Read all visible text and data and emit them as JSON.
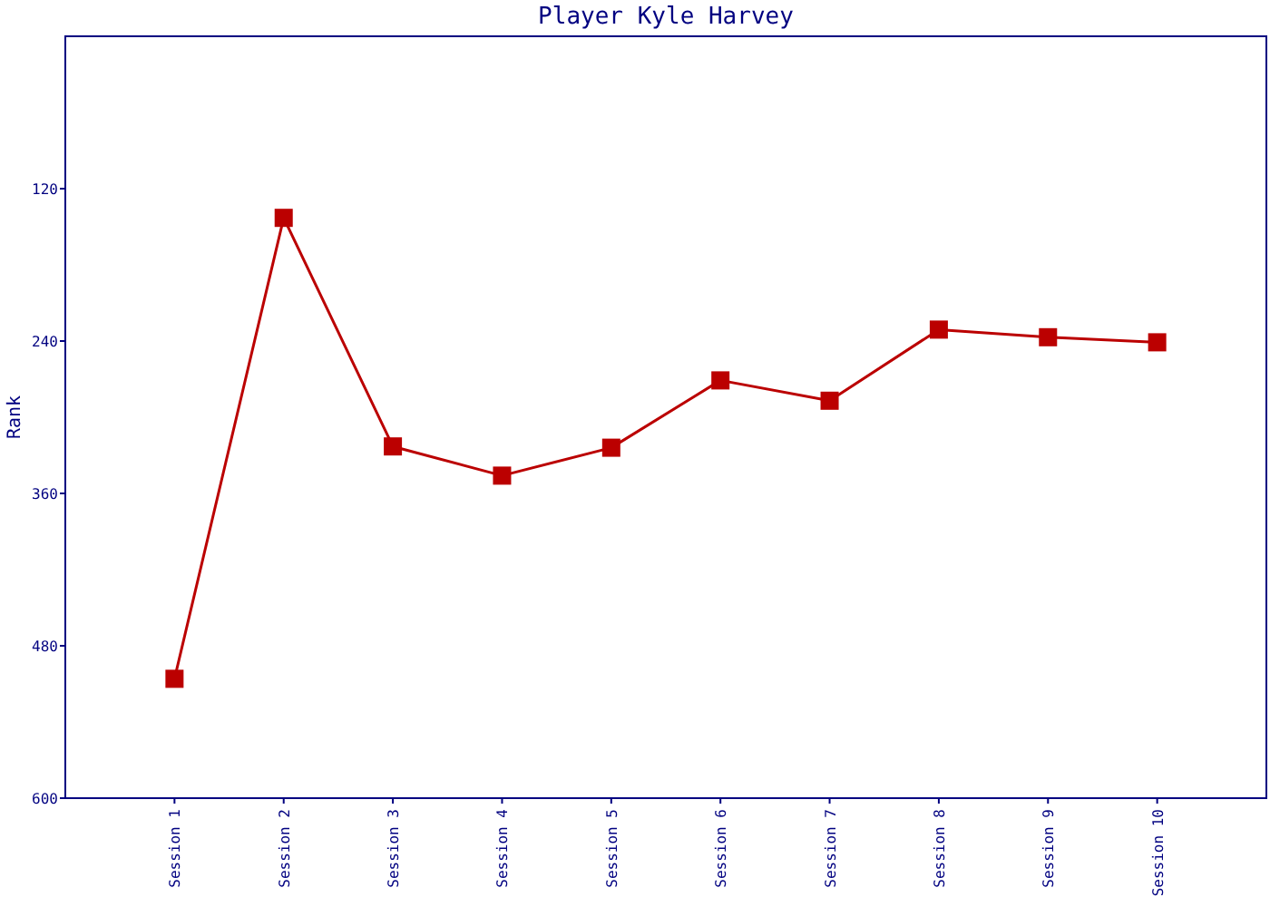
{
  "chart_data": {
    "type": "line",
    "title": "Player Kyle Harvey",
    "ylabel": "Rank",
    "categories": [
      "Session 1",
      "Session 2",
      "Session 3",
      "Session 4",
      "Session 5",
      "Session 6",
      "Session 7",
      "Session 8",
      "Session 9",
      "Session 10"
    ],
    "series": [
      {
        "color": "#bb0000",
        "values": [
          506,
          143,
          323,
          346,
          324,
          271,
          287,
          231,
          237,
          241
        ]
      }
    ],
    "ylim": [
      600,
      0
    ],
    "yticks": [
      120,
      240,
      360,
      480,
      600
    ],
    "marker": "square",
    "line_style": "solid"
  }
}
